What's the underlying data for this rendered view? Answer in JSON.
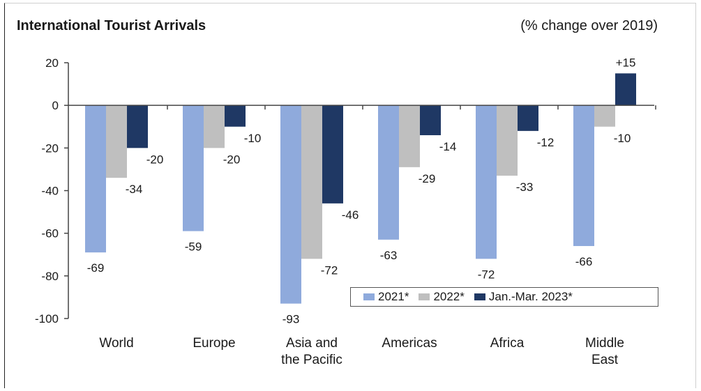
{
  "chart_data": {
    "type": "bar",
    "title": "International Tourist Arrivals",
    "subtitle": "(% change over 2019)",
    "categories": [
      "World",
      "Europe",
      "Asia and the Pacific",
      "Americas",
      "Africa",
      "Middle East"
    ],
    "category_lines": [
      [
        "World"
      ],
      [
        "Europe"
      ],
      [
        "Asia and",
        "the Pacific"
      ],
      [
        "Americas"
      ],
      [
        "Africa"
      ],
      [
        "Middle",
        "East"
      ]
    ],
    "series": [
      {
        "name": "2021*",
        "color": "#8FAADC",
        "values": [
          -69,
          -59,
          -93,
          -63,
          -72,
          -66
        ]
      },
      {
        "name": "2022*",
        "color": "#BFBFBF",
        "values": [
          -34,
          -20,
          -72,
          -29,
          -33,
          -10
        ]
      },
      {
        "name": "Jan.-Mar. 2023*",
        "color": "#1F3864",
        "values": [
          -20,
          -10,
          -46,
          -14,
          -12,
          15
        ]
      }
    ],
    "data_labels": [
      [
        "-69",
        "-59",
        "-93",
        "-63",
        "-72",
        "-66"
      ],
      [
        "-34",
        "-20",
        "-72",
        "-29",
        "-33",
        "-10"
      ],
      [
        "-20",
        "-10",
        "-46",
        "-14",
        "-12",
        "+15"
      ]
    ],
    "yticks": [
      20,
      0,
      -20,
      -40,
      -60,
      -80,
      -100
    ],
    "ylim": [
      -100,
      20
    ],
    "legend_position": "bottom-right"
  }
}
